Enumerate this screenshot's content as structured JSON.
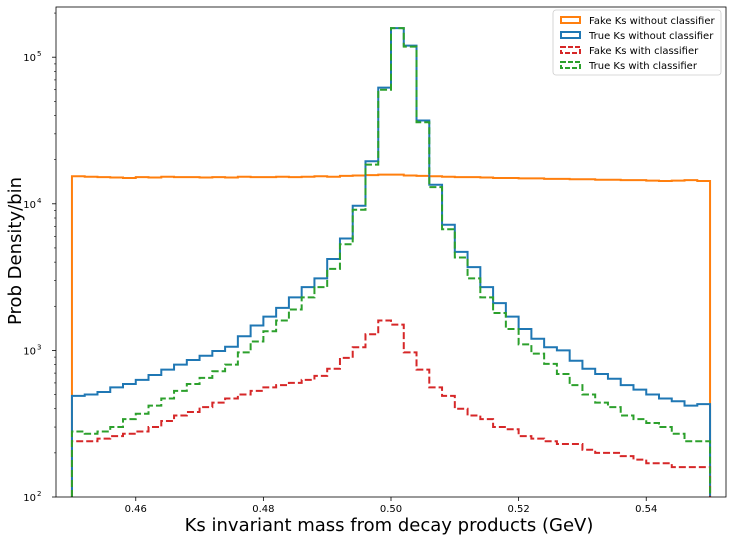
{
  "chart_data": {
    "type": "step-histogram",
    "title": "",
    "xlabel": "Ks invariant mass from decay products (GeV)",
    "ylabel": "Prob Density/bin",
    "xlim": [
      0.4475,
      0.5525
    ],
    "ylim": [
      100,
      220000
    ],
    "yscale": "log",
    "grid": false,
    "legend_position": "top-right",
    "x_ticks": [
      0.46,
      0.48,
      0.5,
      0.52,
      0.54
    ],
    "x_tick_labels": [
      "0.46",
      "0.48",
      "0.50",
      "0.52",
      "0.54"
    ],
    "y_ticks": [
      100,
      1000,
      10000,
      100000
    ],
    "y_tick_labels": [
      "10",
      "10",
      "10",
      "10"
    ],
    "y_tick_exponents": [
      "2",
      "3",
      "4",
      "5"
    ],
    "bin_edges": [
      0.45,
      0.452,
      0.454,
      0.456,
      0.458,
      0.46,
      0.462,
      0.464,
      0.466,
      0.468,
      0.47,
      0.472,
      0.474,
      0.476,
      0.478,
      0.48,
      0.482,
      0.484,
      0.486,
      0.488,
      0.49,
      0.492,
      0.494,
      0.496,
      0.498,
      0.5,
      0.502,
      0.504,
      0.506,
      0.508,
      0.51,
      0.512,
      0.514,
      0.516,
      0.518,
      0.52,
      0.522,
      0.524,
      0.526,
      0.528,
      0.53,
      0.532,
      0.534,
      0.536,
      0.538,
      0.54,
      0.542,
      0.544,
      0.546,
      0.548,
      0.55
    ],
    "series": [
      {
        "name": "Fake Ks without classifier",
        "color": "#ff7f0e",
        "style": "solid",
        "values": [
          15400,
          15300,
          15200,
          15100,
          15000,
          15200,
          15100,
          15300,
          15200,
          15200,
          15100,
          15200,
          15100,
          15300,
          15200,
          15200,
          15300,
          15200,
          15300,
          15400,
          15300,
          15500,
          15600,
          15700,
          15800,
          15800,
          15600,
          15500,
          15400,
          15300,
          15200,
          15200,
          15100,
          15000,
          15000,
          14900,
          14900,
          14800,
          14800,
          14700,
          14700,
          14600,
          14600,
          14500,
          14500,
          14400,
          14300,
          14400,
          14500,
          14300
        ]
      },
      {
        "name": "True Ks without classifier",
        "color": "#1f77b4",
        "style": "solid",
        "values": [
          490,
          500,
          520,
          560,
          590,
          630,
          680,
          740,
          800,
          860,
          920,
          990,
          1060,
          1250,
          1480,
          1700,
          1950,
          2300,
          2700,
          3100,
          4200,
          5800,
          9700,
          19500,
          62000,
          158000,
          120000,
          37000,
          13500,
          7200,
          4700,
          3700,
          2700,
          2100,
          1700,
          1400,
          1200,
          1050,
          1000,
          850,
          750,
          690,
          640,
          580,
          540,
          500,
          470,
          450,
          420,
          430
        ]
      },
      {
        "name": "Fake Ks with classifier",
        "color": "#d62728",
        "style": "dashed",
        "values": [
          240,
          240,
          250,
          260,
          270,
          280,
          300,
          330,
          360,
          380,
          410,
          440,
          470,
          500,
          530,
          560,
          580,
          600,
          630,
          670,
          750,
          890,
          1050,
          1290,
          1600,
          1500,
          970,
          740,
          560,
          490,
          400,
          360,
          340,
          300,
          290,
          260,
          250,
          240,
          230,
          230,
          210,
          200,
          200,
          190,
          180,
          170,
          170,
          160,
          160,
          160
        ]
      },
      {
        "name": "True Ks with classifier",
        "color": "#2ca02c",
        "style": "dashed",
        "values": [
          280,
          270,
          280,
          300,
          340,
          370,
          420,
          470,
          530,
          590,
          650,
          720,
          800,
          970,
          1150,
          1350,
          1600,
          1900,
          2300,
          2700,
          3600,
          5300,
          9100,
          18500,
          60000,
          158000,
          118000,
          36000,
          13000,
          6700,
          4300,
          3100,
          2300,
          1800,
          1400,
          1100,
          950,
          810,
          690,
          580,
          500,
          440,
          410,
          360,
          340,
          320,
          300,
          270,
          240,
          240
        ]
      }
    ]
  }
}
